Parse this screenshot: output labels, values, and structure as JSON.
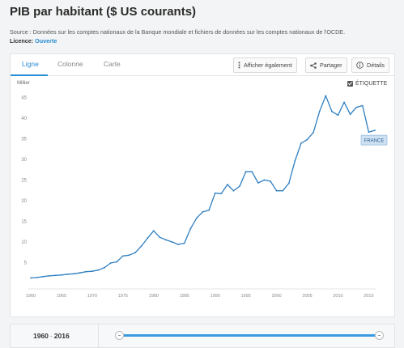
{
  "page": {
    "title": "PIB par habitant ($ US courants)",
    "source_text": "Source : Données sur les comptes nationaux de la Banque mondiale et fichiers de données sur les comptes nationaux de l'OCDE.",
    "licence_label": "Licence:",
    "licence_link": "Ouverte"
  },
  "tabs": [
    {
      "label": "Ligne",
      "active": true
    },
    {
      "label": "Colonne",
      "active": false
    },
    {
      "label": "Carte",
      "active": false
    }
  ],
  "toolbar": {
    "afficher_label": "Afficher également",
    "partager_label": "Partager",
    "details_label": "Détails"
  },
  "etiquette_label": "ÉTIQUETTE",
  "colors": {
    "accent": "#2a8dd4",
    "line": "#2f7fc1"
  },
  "chart_data": {
    "type": "line",
    "ylabel": "Millier",
    "y_ticks": [
      5,
      10,
      15,
      20,
      25,
      30,
      35,
      40,
      45
    ],
    "x_ticks": [
      1960,
      1965,
      1970,
      1975,
      1980,
      1985,
      1990,
      1995,
      2000,
      2005,
      2010,
      2015
    ],
    "xlim": [
      1960,
      2016
    ],
    "ylim": [
      0,
      48
    ],
    "series": [
      {
        "name": "FRANCE",
        "x": [
          1960,
          1961,
          1962,
          1963,
          1964,
          1965,
          1966,
          1967,
          1968,
          1969,
          1970,
          1971,
          1972,
          1973,
          1974,
          1975,
          1976,
          1977,
          1978,
          1979,
          1980,
          1981,
          1982,
          1983,
          1984,
          1985,
          1986,
          1987,
          1988,
          1989,
          1990,
          1991,
          1992,
          1993,
          1994,
          1995,
          1996,
          1997,
          1998,
          1999,
          2000,
          2001,
          2002,
          2003,
          2004,
          2005,
          2006,
          2007,
          2008,
          2009,
          2010,
          2011,
          2012,
          2013,
          2014,
          2015,
          2016
        ],
        "y": [
          1.3,
          1.4,
          1.6,
          1.8,
          1.9,
          2.0,
          2.2,
          2.3,
          2.5,
          2.8,
          2.9,
          3.2,
          3.8,
          4.9,
          5.2,
          6.6,
          6.8,
          7.4,
          9.0,
          10.9,
          12.7,
          11.1,
          10.5,
          10.0,
          9.4,
          9.7,
          13.2,
          15.8,
          17.3,
          17.7,
          21.8,
          21.7,
          23.9,
          22.4,
          23.5,
          27.0,
          27.0,
          24.3,
          25.0,
          24.7,
          22.4,
          22.4,
          24.2,
          29.6,
          33.9,
          34.8,
          36.5,
          41.6,
          45.4,
          41.6,
          40.7,
          43.8,
          40.9,
          42.6,
          43.0,
          36.6,
          37.0
        ]
      }
    ],
    "data_label": "FRANCE",
    "grid": false,
    "legend": "none"
  },
  "range": {
    "start": "1960",
    "sep": "-",
    "end": "2016"
  }
}
